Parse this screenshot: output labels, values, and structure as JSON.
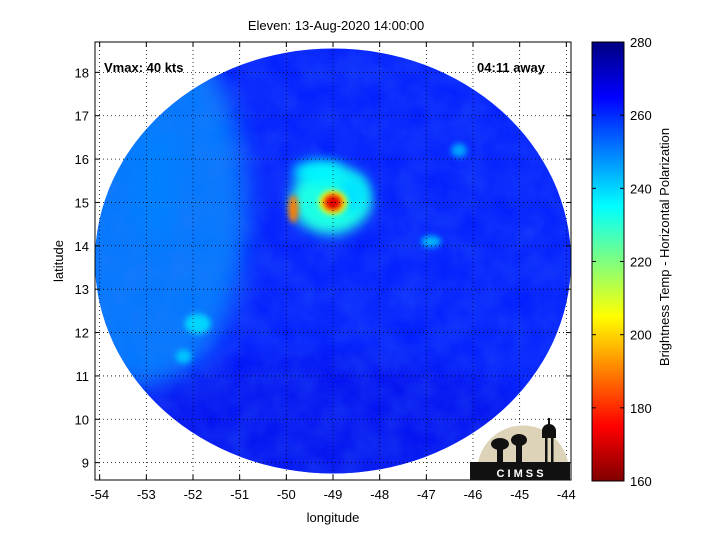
{
  "chart_data": {
    "type": "heatmap",
    "title": "Eleven: 13-Aug-2020 14:00:00",
    "xlabel": "longitude",
    "ylabel": "latitude",
    "xlim": [
      -54.1,
      -43.9
    ],
    "ylim": [
      8.6,
      18.7
    ],
    "x_ticks": [
      -54,
      -53,
      -52,
      -51,
      -50,
      -49,
      -48,
      -47,
      -46,
      -45,
      -44
    ],
    "y_ticks": [
      9,
      10,
      11,
      12,
      13,
      14,
      15,
      16,
      17,
      18
    ],
    "grid": true,
    "annotations": {
      "vmax": "Vmax: 40 kts",
      "time_away": "04:11 away"
    },
    "colorbar": {
      "label": "Brightness Temp - Horizontal Polarization",
      "min": 160,
      "max": 280,
      "ticks": [
        160,
        180,
        200,
        220,
        240,
        260,
        280
      ],
      "colormap": "jet"
    },
    "swath": {
      "center_lon": -49.0,
      "center_lat": 13.65,
      "radius_deg_lon": 5.1,
      "radius_deg_lat": 4.9,
      "background_value": 262
    },
    "features": [
      {
        "name": "storm-core",
        "lon": -49.0,
        "lat": 15.0,
        "value": 172
      },
      {
        "name": "storm-inner-band",
        "lon": -49.05,
        "lat": 15.05,
        "value": 232
      },
      {
        "name": "storm-west-band",
        "lon": -49.85,
        "lat": 14.85,
        "value": 190
      },
      {
        "name": "storm-north-arc",
        "lon": -49.3,
        "lat": 15.7,
        "value": 236
      },
      {
        "name": "storm-east-arc",
        "lon": -48.6,
        "lat": 15.2,
        "value": 238
      },
      {
        "name": "cell-southwest",
        "lon": -51.9,
        "lat": 12.2,
        "value": 240
      },
      {
        "name": "cell-south",
        "lon": -52.2,
        "lat": 11.45,
        "value": 242
      },
      {
        "name": "cell-east",
        "lon": -46.9,
        "lat": 14.1,
        "value": 244
      },
      {
        "name": "cell-northeast",
        "lon": -46.3,
        "lat": 16.2,
        "value": 246
      },
      {
        "name": "cell-northwest-band",
        "lon": -52.8,
        "lat": 15.5,
        "value": 250
      }
    ],
    "logo_text": "C I M S S"
  }
}
